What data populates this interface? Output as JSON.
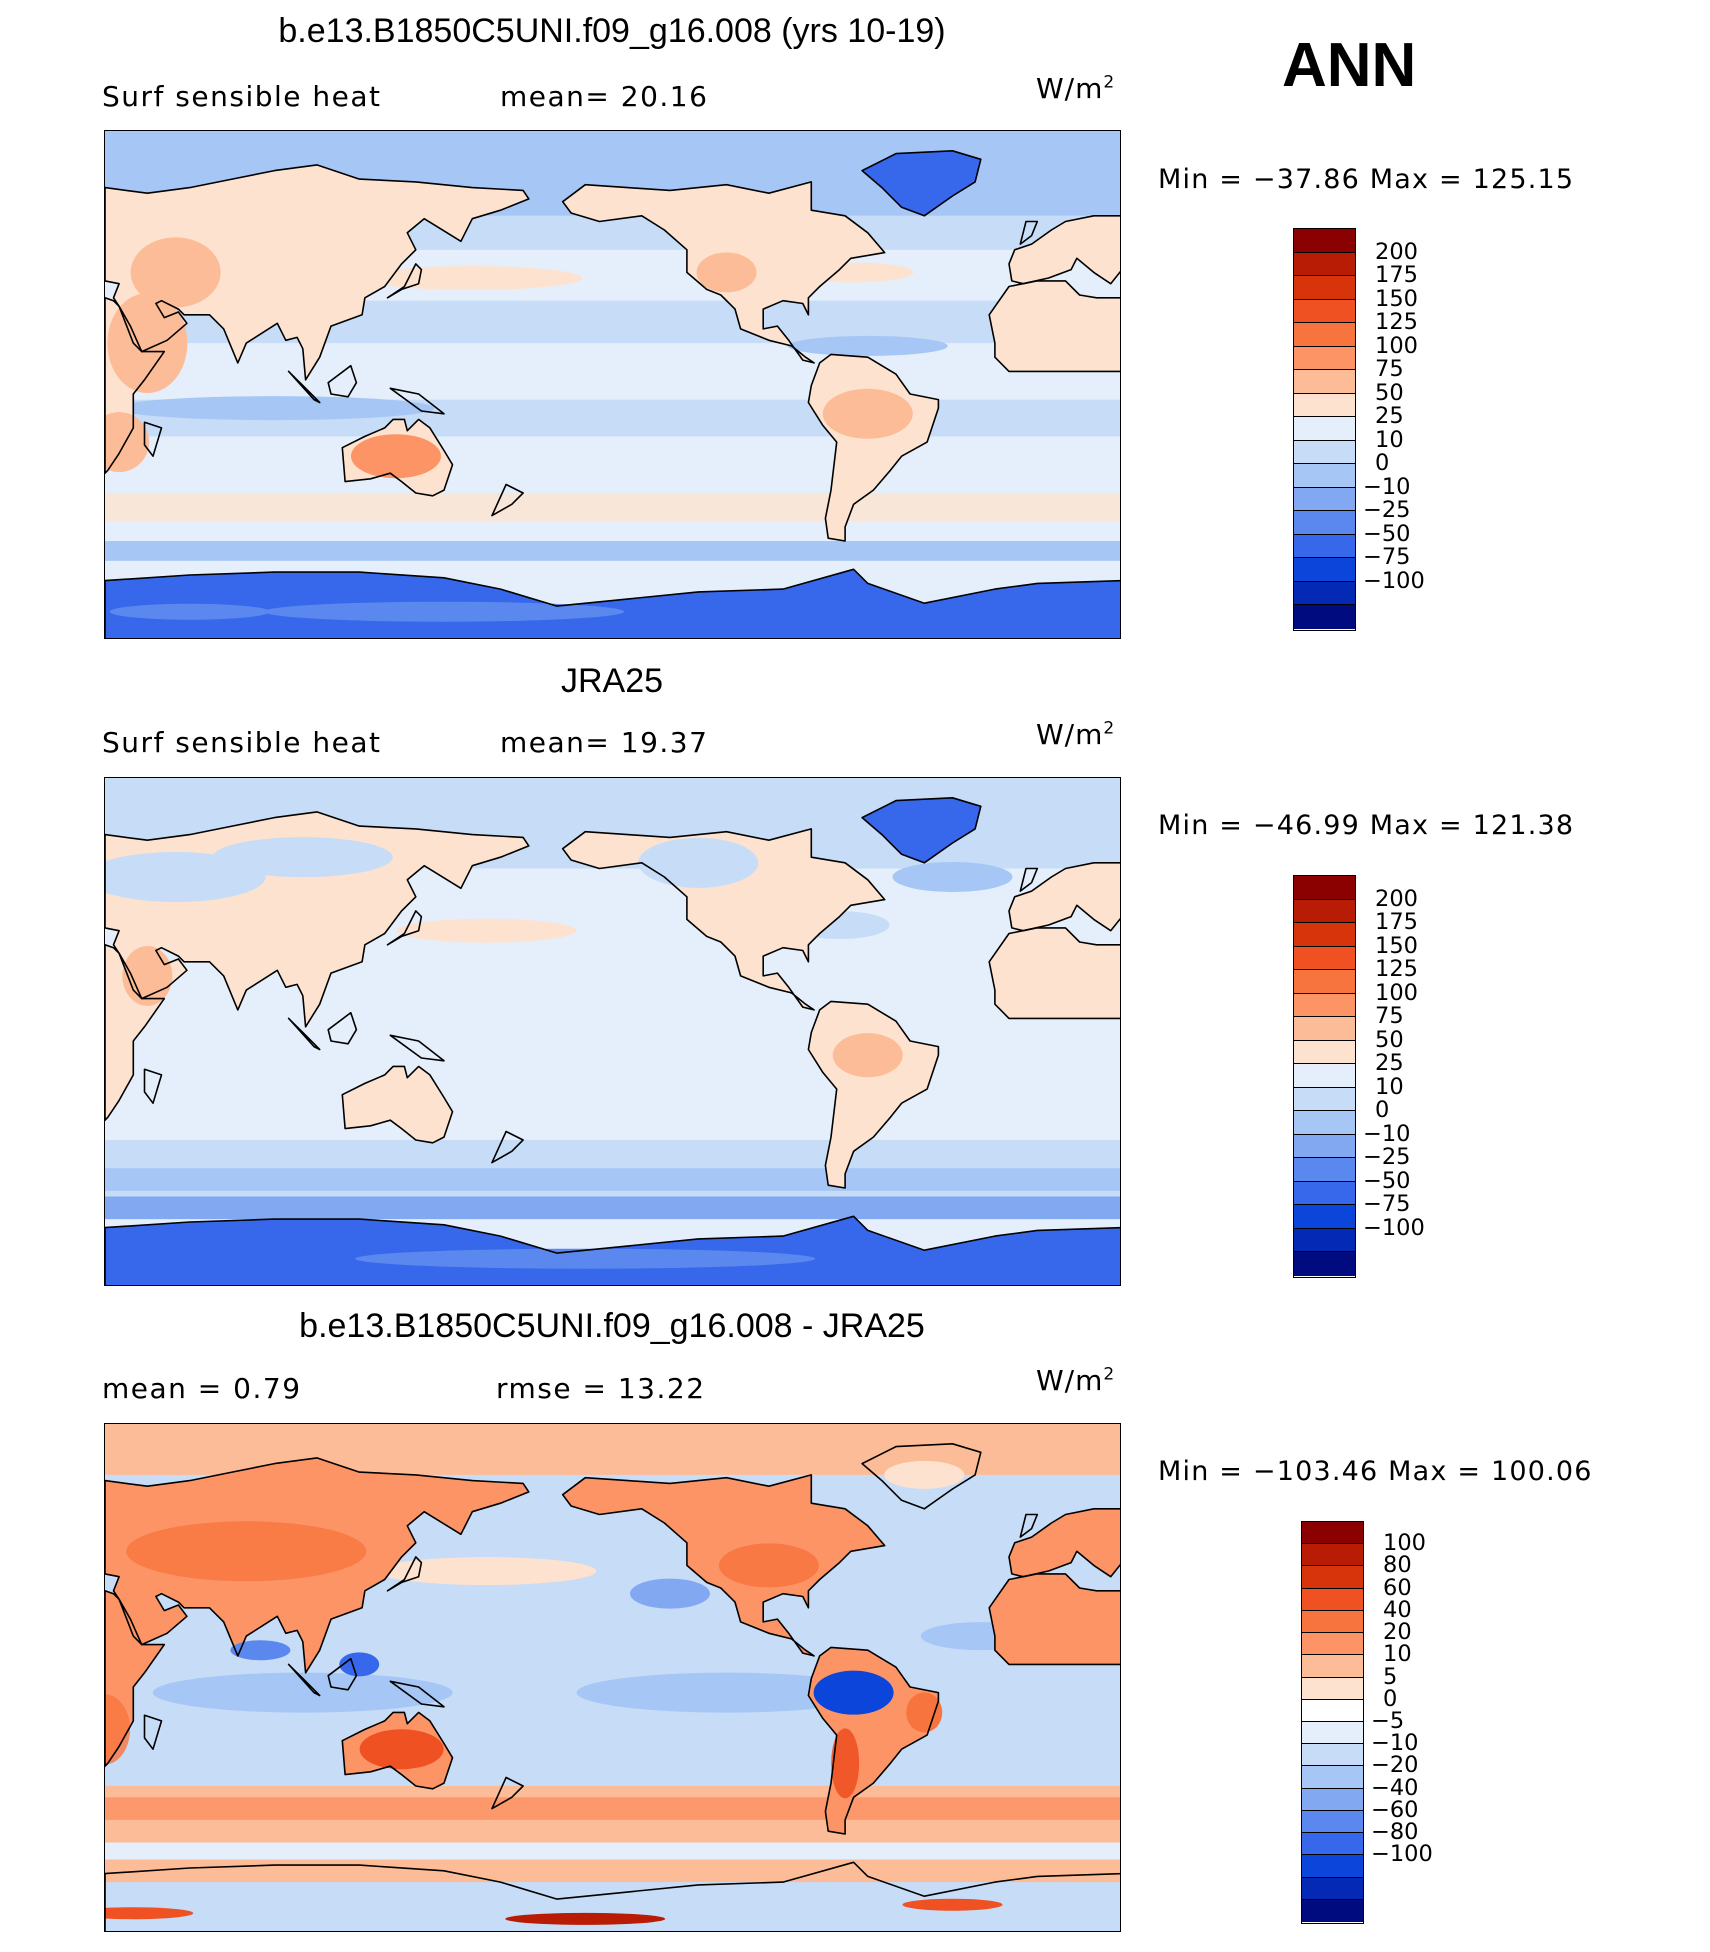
{
  "label": "ANN",
  "units": "W/m",
  "units_exp": "2",
  "panels": [
    {
      "title": "b.e13.B1850C5UNI.f09_g16.008 (yrs 10-19)",
      "left_text": "Surf  sensible  heat",
      "stat_text": "mean=   20.16",
      "minmax": "Min  =  −37.86  Max  =  125.15",
      "field": "model"
    },
    {
      "title": "JRA25",
      "left_text": "Surf  sensible  heat",
      "stat_text": "mean=   19.37",
      "minmax": "Min  =  −46.99  Max  =  121.38",
      "field": "obs"
    },
    {
      "title": "b.e13.B1850C5UNI.f09_g16.008 - JRA25",
      "left_text": "mean  =      0.79",
      "stat_text": "rmse  =     13.22",
      "minmax": "Min  =  −103.46  Max  =  100.06",
      "field": "diff"
    }
  ],
  "colorbars": [
    {
      "labels": [
        "200",
        "175",
        "150",
        "125",
        "100",
        "75",
        "50",
        "25",
        "10",
        "0",
        "−10",
        "−25",
        "−50",
        "−75",
        "−100"
      ],
      "colors": [
        "#8b0000",
        "#b81c04",
        "#d7340c",
        "#ef5122",
        "#f8743e",
        "#fc9466",
        "#fdbc98",
        "#fde3cf",
        "#e4effb",
        "#c6dcf7",
        "#a6c6f5",
        "#82a8f1",
        "#5b88ee",
        "#3768ec",
        "#0c45d9",
        "#0429b4",
        "#000b80"
      ]
    },
    {
      "labels": [
        "200",
        "175",
        "150",
        "125",
        "100",
        "75",
        "50",
        "25",
        "10",
        "0",
        "−10",
        "−25",
        "−50",
        "−75",
        "−100"
      ],
      "colors": [
        "#8b0000",
        "#b81c04",
        "#d7340c",
        "#ef5122",
        "#f8743e",
        "#fc9466",
        "#fdbc98",
        "#fde3cf",
        "#e4effb",
        "#c6dcf7",
        "#a6c6f5",
        "#82a8f1",
        "#5b88ee",
        "#3768ec",
        "#0c45d9",
        "#0429b4",
        "#000b80"
      ]
    },
    {
      "labels": [
        "100",
        "80",
        "60",
        "40",
        "20",
        "10",
        "5",
        "0",
        "−5",
        "−10",
        "−20",
        "−40",
        "−60",
        "−80",
        "−100"
      ],
      "colors": [
        "#8b0000",
        "#b81c04",
        "#d7340c",
        "#ef5122",
        "#f8743e",
        "#fc9466",
        "#fdbc98",
        "#fde3cf",
        "#ffffff",
        "#e4effb",
        "#c6dcf7",
        "#a6c6f5",
        "#82a8f1",
        "#5b88ee",
        "#3768ec",
        "#0c45d9",
        "#0429b4",
        "#000b80"
      ]
    }
  ]
}
